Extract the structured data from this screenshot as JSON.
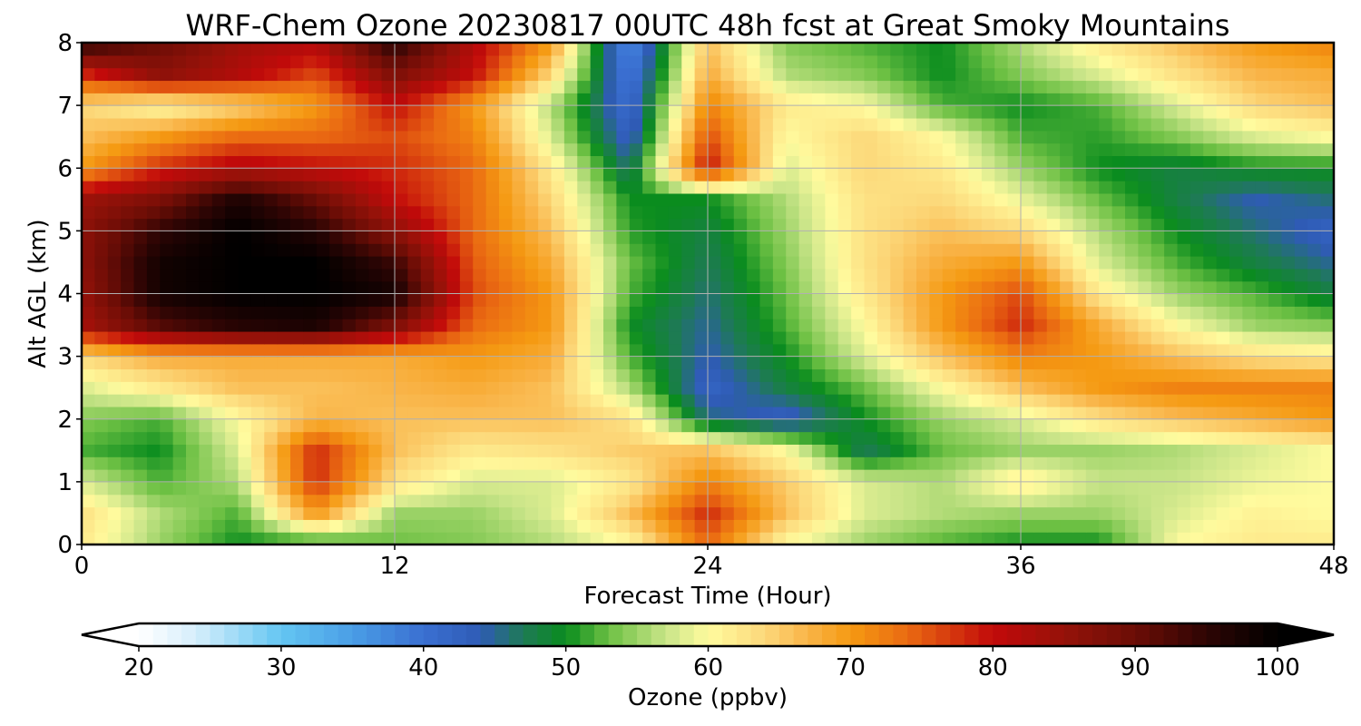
{
  "chart_data": {
    "type": "heatmap",
    "title": "WRF-Chem Ozone  20230817 00UTC 48h fcst at Great Smoky Mountains",
    "xlabel": "Forecast Time (Hour)",
    "ylabel": "Alt AGL (km)",
    "xlim": [
      0,
      48
    ],
    "ylim": [
      0,
      8
    ],
    "xticks": [
      0,
      12,
      24,
      36,
      48
    ],
    "yticks": [
      0,
      1,
      2,
      3,
      4,
      5,
      6,
      7,
      8
    ],
    "grid": true,
    "x": [
      0,
      3,
      6,
      9,
      12,
      15,
      18,
      21,
      24,
      27,
      30,
      33,
      36,
      39,
      42,
      45,
      48
    ],
    "y": [
      0,
      0.5,
      1,
      1.5,
      2,
      2.5,
      3,
      3.5,
      4,
      4.5,
      5,
      5.5,
      6,
      6.5,
      7,
      7.5,
      8
    ],
    "values": [
      [
        62,
        55,
        50,
        50,
        53,
        54,
        56,
        60,
        74,
        60,
        55,
        52,
        50,
        50,
        60,
        62,
        62
      ],
      [
        63,
        56,
        52,
        70,
        55,
        55,
        58,
        66,
        78,
        66,
        58,
        56,
        55,
        55,
        58,
        61,
        60
      ],
      [
        58,
        52,
        56,
        78,
        63,
        58,
        58,
        62,
        72,
        65,
        58,
        56,
        62,
        57,
        57,
        59,
        60
      ],
      [
        52,
        50,
        58,
        78,
        66,
        62,
        63,
        65,
        66,
        60,
        47,
        53,
        55,
        55,
        56,
        58,
        60
      ],
      [
        54,
        52,
        60,
        67,
        66,
        66,
        66,
        63,
        46,
        42,
        50,
        55,
        58,
        63,
        66,
        68,
        70
      ],
      [
        58,
        62,
        66,
        66,
        67,
        68,
        66,
        56,
        42,
        48,
        53,
        60,
        66,
        70,
        72,
        72,
        72
      ],
      [
        64,
        68,
        68,
        68,
        68,
        70,
        68,
        52,
        44,
        50,
        58,
        66,
        72,
        70,
        66,
        63,
        62
      ],
      [
        83,
        92,
        96,
        97,
        88,
        74,
        70,
        50,
        45,
        52,
        60,
        70,
        78,
        68,
        60,
        55,
        54
      ],
      [
        85,
        98,
        100,
        100,
        98,
        76,
        70,
        52,
        46,
        53,
        62,
        70,
        76,
        62,
        55,
        52,
        48
      ],
      [
        86,
        98,
        100,
        100,
        94,
        75,
        68,
        53,
        47,
        54,
        63,
        68,
        70,
        58,
        52,
        48,
        45
      ],
      [
        86,
        95,
        100,
        96,
        86,
        74,
        66,
        51,
        48,
        55,
        63,
        66,
        64,
        56,
        50,
        46,
        42
      ],
      [
        84,
        88,
        97,
        90,
        80,
        74,
        64,
        50,
        50,
        56,
        63,
        64,
        59,
        53,
        48,
        44,
        46
      ],
      [
        70,
        78,
        82,
        80,
        78,
        74,
        62,
        46,
        80,
        58,
        64,
        62,
        55,
        50,
        48,
        50,
        50
      ],
      [
        66,
        70,
        74,
        74,
        76,
        72,
        58,
        42,
        76,
        60,
        64,
        60,
        52,
        51,
        54,
        58,
        60
      ],
      [
        64,
        60,
        64,
        70,
        80,
        70,
        56,
        40,
        72,
        62,
        60,
        52,
        50,
        52,
        58,
        64,
        66
      ],
      [
        78,
        86,
        82,
        76,
        88,
        80,
        64,
        38,
        68,
        56,
        54,
        50,
        54,
        58,
        63,
        67,
        68
      ],
      [
        96,
        90,
        84,
        82,
        96,
        82,
        70,
        36,
        66,
        54,
        52,
        50,
        56,
        62,
        66,
        70,
        72
      ]
    ],
    "colorbar": {
      "label": "Ozone  (ppbv)",
      "min": 20,
      "max": 100,
      "ticks": [
        20,
        30,
        40,
        50,
        60,
        70,
        80,
        90,
        100
      ],
      "extend": "both",
      "stops": [
        {
          "v": 20,
          "c": "#ffffff"
        },
        {
          "v": 24,
          "c": "#d6eefb"
        },
        {
          "v": 30,
          "c": "#63c6f2"
        },
        {
          "v": 35,
          "c": "#4a9ee6"
        },
        {
          "v": 40,
          "c": "#3a6fd1"
        },
        {
          "v": 44,
          "c": "#2f5bb5"
        },
        {
          "v": 47,
          "c": "#1e7a55"
        },
        {
          "v": 50,
          "c": "#0a8c1e"
        },
        {
          "v": 53,
          "c": "#6cc043"
        },
        {
          "v": 57,
          "c": "#c8e488"
        },
        {
          "v": 60,
          "c": "#fffb9e"
        },
        {
          "v": 64,
          "c": "#fcd87a"
        },
        {
          "v": 67,
          "c": "#f9b448"
        },
        {
          "v": 70,
          "c": "#f59a12"
        },
        {
          "v": 74,
          "c": "#ea6a12"
        },
        {
          "v": 77,
          "c": "#d63a0e"
        },
        {
          "v": 80,
          "c": "#c20a0a"
        },
        {
          "v": 85,
          "c": "#951209"
        },
        {
          "v": 90,
          "c": "#6b0d06"
        },
        {
          "v": 95,
          "c": "#2e0504"
        },
        {
          "v": 100,
          "c": "#000000"
        }
      ]
    }
  }
}
